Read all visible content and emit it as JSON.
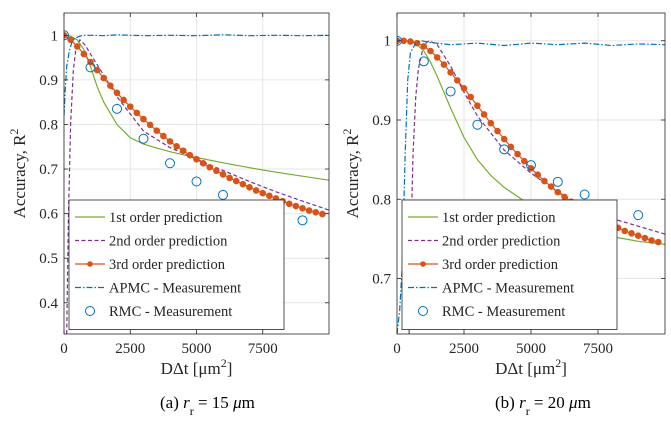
{
  "chart_data": [
    {
      "type": "line",
      "panel": "a",
      "caption": "(a) r_r = 15 μm",
      "xlabel": "DΔt [μm²]",
      "ylabel": "Accuracy, R²",
      "xlim": [
        0,
        10000
      ],
      "ylim": [
        0.33,
        1.05
      ],
      "xticks": [
        0,
        2500,
        5000,
        7500
      ],
      "xtick_labels": [
        "0",
        "2500",
        "5000",
        "7500"
      ],
      "yticks": [
        0.4,
        0.5,
        0.6,
        0.7,
        0.8,
        0.9,
        1.0
      ],
      "ytick_labels": [
        "0.4",
        "0.5",
        "0.6",
        "0.7",
        "0.8",
        "0.9",
        "1"
      ],
      "grid": true,
      "legend_position": "bottom-left",
      "series": [
        {
          "name": "1st order prediction",
          "style": "solid",
          "color": "#77ac30",
          "x": [
            0,
            250,
            500,
            750,
            1000,
            1250,
            1500,
            2000,
            2500,
            3000,
            3500,
            4000,
            4500,
            5000,
            6000,
            7000,
            8000,
            9000,
            10000
          ],
          "y": [
            1.0,
            0.998,
            0.99,
            0.968,
            0.93,
            0.885,
            0.85,
            0.8,
            0.77,
            0.756,
            0.747,
            0.739,
            0.732,
            0.726,
            0.714,
            0.703,
            0.693,
            0.684,
            0.675
          ]
        },
        {
          "name": "2nd order prediction",
          "style": "dashed",
          "color": "#7e2f8e",
          "x": [
            100,
            170,
            250,
            350,
            450,
            600,
            800,
            1000,
            1500,
            2000,
            3000,
            4000,
            5000,
            6000,
            7000,
            8000,
            9000,
            10000
          ],
          "y": [
            0.33,
            0.6,
            0.8,
            0.92,
            0.97,
            0.99,
            0.978,
            0.958,
            0.91,
            0.862,
            0.785,
            0.748,
            0.722,
            0.697,
            0.672,
            0.649,
            0.628,
            0.608
          ]
        },
        {
          "name": "3rd order prediction",
          "style": "solid",
          "color": "#d95319",
          "marker": "filled-circle",
          "x": [
            0,
            250,
            500,
            750,
            1000,
            1250,
            1500,
            1750,
            2000,
            2250,
            2500,
            2750,
            3000,
            3250,
            3500,
            3750,
            4000,
            4250,
            4500,
            4750,
            5000,
            5250,
            5500,
            5750,
            6000,
            6250,
            6500,
            6750,
            7000,
            7250,
            7500,
            7750,
            8000,
            8250,
            8500,
            8750,
            9000,
            9250,
            9500,
            9750
          ],
          "y": [
            1.0,
            0.99,
            0.975,
            0.958,
            0.94,
            0.922,
            0.904,
            0.887,
            0.871,
            0.855,
            0.84,
            0.826,
            0.812,
            0.799,
            0.786,
            0.774,
            0.762,
            0.751,
            0.741,
            0.731,
            0.722,
            0.713,
            0.704,
            0.696,
            0.688,
            0.68,
            0.673,
            0.666,
            0.659,
            0.652,
            0.646,
            0.64,
            0.634,
            0.628,
            0.622,
            0.617,
            0.612,
            0.607,
            0.603,
            0.599
          ]
        },
        {
          "name": "APMC - Measurement",
          "style": "dashdot",
          "color": "#0072bd",
          "x": [
            0,
            50,
            100,
            200,
            300,
            400,
            600,
            800,
            1000,
            1500,
            2000,
            3000,
            4000,
            5000,
            6000,
            7000,
            8000,
            9000,
            10000
          ],
          "y": [
            0.82,
            0.88,
            0.93,
            0.965,
            0.985,
            0.993,
            0.998,
            1.0,
            1.0,
            0.999,
            1.001,
            0.999,
            1.0,
            0.999,
            1.001,
            0.999,
            1.0,
            0.999,
            1.0
          ]
        },
        {
          "name": "RMC - Measurement",
          "style": "marker-only",
          "color": "#0072bd",
          "marker": "open-circle",
          "x": [
            0,
            1000,
            2000,
            3000,
            4000,
            5000,
            6000,
            7000,
            8000,
            9000
          ],
          "y": [
            1.0,
            0.928,
            0.835,
            0.768,
            0.713,
            0.672,
            0.642,
            0.619,
            0.598,
            0.585
          ]
        }
      ]
    },
    {
      "type": "line",
      "panel": "b",
      "caption": "(b) r_r = 20 μm",
      "xlabel": "DΔt [μm²]",
      "ylabel": "Accuracy, R²",
      "xlim": [
        0,
        10000
      ],
      "ylim": [
        0.63,
        1.035
      ],
      "xticks": [
        0,
        2500,
        5000,
        7500
      ],
      "xtick_labels": [
        "0",
        "2500",
        "5000",
        "7500"
      ],
      "yticks": [
        0.7,
        0.8,
        0.9,
        1.0
      ],
      "ytick_labels": [
        "0.7",
        "0.8",
        "0.9",
        "1"
      ],
      "grid": true,
      "legend_position": "bottom-left",
      "series": [
        {
          "name": "1st order prediction",
          "style": "solid",
          "color": "#77ac30",
          "x": [
            0,
            250,
            500,
            750,
            1000,
            1250,
            1500,
            2000,
            2500,
            3000,
            3500,
            4000,
            5000,
            6000,
            7000,
            8000,
            9000,
            10000
          ],
          "y": [
            1.0,
            1.0,
            0.999,
            0.995,
            0.987,
            0.973,
            0.955,
            0.915,
            0.878,
            0.85,
            0.83,
            0.815,
            0.792,
            0.774,
            0.762,
            0.753,
            0.747,
            0.743
          ]
        },
        {
          "name": "2nd order prediction",
          "style": "dashed",
          "color": "#7e2f8e",
          "x": [
            450,
            520,
            600,
            700,
            800,
            1000,
            1200,
            1500,
            2000,
            2500,
            3000,
            4000,
            5000,
            6000,
            7000,
            8000,
            9000,
            10000
          ],
          "y": [
            0.63,
            0.75,
            0.86,
            0.93,
            0.965,
            0.995,
            1.0,
            0.995,
            0.968,
            0.935,
            0.905,
            0.862,
            0.833,
            0.809,
            0.79,
            0.776,
            0.766,
            0.756
          ]
        },
        {
          "name": "3rd order prediction",
          "style": "solid",
          "color": "#d95319",
          "marker": "filled-circle",
          "x": [
            0,
            250,
            500,
            750,
            1000,
            1250,
            1500,
            1750,
            2000,
            2250,
            2500,
            2750,
            3000,
            3250,
            3500,
            3750,
            4000,
            4250,
            4500,
            4750,
            5000,
            5250,
            5500,
            5750,
            6000,
            6250,
            6500,
            6750,
            7000,
            7250,
            7500,
            7750,
            8000,
            8250,
            8500,
            8750,
            9000,
            9250,
            9500,
            9750
          ],
          "y": [
            1.0,
            1.0,
            0.999,
            0.997,
            0.993,
            0.987,
            0.979,
            0.97,
            0.96,
            0.95,
            0.94,
            0.929,
            0.918,
            0.907,
            0.896,
            0.886,
            0.876,
            0.866,
            0.857,
            0.848,
            0.839,
            0.831,
            0.823,
            0.816,
            0.809,
            0.803,
            0.797,
            0.791,
            0.786,
            0.781,
            0.776,
            0.772,
            0.768,
            0.764,
            0.76,
            0.757,
            0.754,
            0.751,
            0.748,
            0.746
          ]
        },
        {
          "name": "APMC - Measurement",
          "style": "dashdot",
          "color": "#0072bd",
          "x": [
            0,
            100,
            200,
            300,
            400,
            500,
            700,
            900,
            1200,
            2000,
            3000,
            4000,
            5000,
            6000,
            7000,
            8000,
            9000,
            10000
          ],
          "y": [
            0.63,
            0.66,
            0.72,
            0.85,
            0.95,
            0.985,
            0.997,
            1.0,
            0.998,
            0.995,
            0.997,
            0.994,
            0.997,
            0.995,
            0.997,
            0.994,
            0.996,
            0.995
          ]
        },
        {
          "name": "RMC - Measurement",
          "style": "marker-only",
          "color": "#0072bd",
          "marker": "open-circle",
          "x": [
            0,
            1000,
            2000,
            3000,
            4000,
            5000,
            6000,
            7000,
            8000,
            9000
          ],
          "y": [
            1.0,
            0.974,
            0.936,
            0.894,
            0.863,
            0.843,
            0.822,
            0.806,
            0.79,
            0.78
          ]
        }
      ]
    }
  ]
}
